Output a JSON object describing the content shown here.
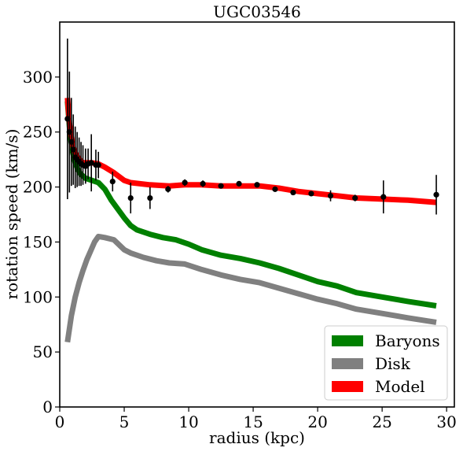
{
  "chart_data": {
    "type": "line",
    "title": "UGC03546",
    "xlabel": "radius (kpc)",
    "ylabel": "rotation speed (km/s)",
    "xlim": [
      0,
      30.6
    ],
    "ylim": [
      0,
      350
    ],
    "x_ticks": [
      0,
      5,
      10,
      15,
      20,
      25,
      30
    ],
    "y_ticks": [
      0,
      50,
      100,
      150,
      200,
      250,
      300
    ],
    "legend": {
      "position": "lower-right",
      "entries": [
        {
          "label": "Baryons",
          "color": "#008000"
        },
        {
          "label": "Disk",
          "color": "#808080"
        },
        {
          "label": "Model",
          "color": "#ff0000"
        }
      ]
    },
    "series": [
      {
        "name": "Baryons",
        "color": "#008000",
        "points": [
          [
            0.6,
            278
          ],
          [
            0.8,
            248
          ],
          [
            1.0,
            232
          ],
          [
            1.2,
            222
          ],
          [
            1.4,
            216
          ],
          [
            1.6,
            212
          ],
          [
            1.8,
            210
          ],
          [
            2.0,
            208
          ],
          [
            2.5,
            206
          ],
          [
            3.0,
            204
          ],
          [
            3.5,
            198
          ],
          [
            4.0,
            188
          ],
          [
            5.0,
            172
          ],
          [
            5.5,
            165
          ],
          [
            6.0,
            161
          ],
          [
            7.0,
            157
          ],
          [
            8.0,
            154
          ],
          [
            9.0,
            152
          ],
          [
            10.0,
            148
          ],
          [
            11.0,
            143
          ],
          [
            12.5,
            138
          ],
          [
            14.0,
            135
          ],
          [
            15.5,
            131
          ],
          [
            17.0,
            126
          ],
          [
            18.5,
            120
          ],
          [
            20.0,
            114
          ],
          [
            21.5,
            110
          ],
          [
            23.0,
            104
          ],
          [
            25.0,
            100
          ],
          [
            27.0,
            96
          ],
          [
            29.2,
            92
          ]
        ]
      },
      {
        "name": "Disk",
        "color": "#808080",
        "points": [
          [
            0.6,
            59
          ],
          [
            0.9,
            83
          ],
          [
            1.2,
            100
          ],
          [
            1.5,
            113
          ],
          [
            1.8,
            124
          ],
          [
            2.1,
            134
          ],
          [
            2.4,
            142
          ],
          [
            2.7,
            150
          ],
          [
            3.0,
            155
          ],
          [
            3.5,
            154
          ],
          [
            4.2,
            152
          ],
          [
            5.0,
            143
          ],
          [
            5.5,
            140
          ],
          [
            6.5,
            136
          ],
          [
            7.5,
            133
          ],
          [
            8.5,
            131
          ],
          [
            9.7,
            130
          ],
          [
            11.0,
            125
          ],
          [
            12.5,
            120
          ],
          [
            14.0,
            116
          ],
          [
            15.5,
            113
          ],
          [
            17.0,
            108
          ],
          [
            18.5,
            103
          ],
          [
            20.0,
            98
          ],
          [
            21.5,
            94
          ],
          [
            23.0,
            89
          ],
          [
            25.0,
            85
          ],
          [
            27.0,
            81
          ],
          [
            29.2,
            77
          ]
        ]
      },
      {
        "name": "Model",
        "color": "#ff0000",
        "points": [
          [
            0.6,
            281
          ],
          [
            0.75,
            258
          ],
          [
            0.9,
            245
          ],
          [
            1.05,
            236
          ],
          [
            1.2,
            231
          ],
          [
            1.4,
            227
          ],
          [
            1.6,
            224
          ],
          [
            1.8,
            222
          ],
          [
            2.0,
            222
          ],
          [
            2.5,
            222
          ],
          [
            3.0,
            221
          ],
          [
            3.5,
            218
          ],
          [
            4.2,
            213
          ],
          [
            5.0,
            206
          ],
          [
            5.5,
            204
          ],
          [
            7.0,
            202
          ],
          [
            8.5,
            201
          ],
          [
            9.7,
            202
          ],
          [
            11.0,
            202
          ],
          [
            12.5,
            201
          ],
          [
            14.0,
            201
          ],
          [
            15.5,
            201
          ],
          [
            17.0,
            199
          ],
          [
            18.5,
            196
          ],
          [
            20.0,
            194
          ],
          [
            21.5,
            192
          ],
          [
            23.0,
            190
          ],
          [
            25.0,
            189
          ],
          [
            27.0,
            188
          ],
          [
            29.2,
            186
          ]
        ]
      }
    ],
    "observed": {
      "color": "#000000",
      "points": [
        {
          "x": 0.6,
          "y": 262,
          "err": 73
        },
        {
          "x": 0.75,
          "y": 250,
          "err": 55
        },
        {
          "x": 0.9,
          "y": 241,
          "err": 40
        },
        {
          "x": 1.05,
          "y": 234,
          "err": 32
        },
        {
          "x": 1.2,
          "y": 227,
          "err": 28
        },
        {
          "x": 1.35,
          "y": 225,
          "err": 25
        },
        {
          "x": 1.5,
          "y": 223,
          "err": 22
        },
        {
          "x": 1.65,
          "y": 221,
          "err": 20
        },
        {
          "x": 1.8,
          "y": 220,
          "err": 18
        },
        {
          "x": 2.0,
          "y": 219,
          "err": 16
        },
        {
          "x": 2.2,
          "y": 221,
          "err": 14
        },
        {
          "x": 2.45,
          "y": 222,
          "err": 26
        },
        {
          "x": 2.8,
          "y": 220,
          "err": 14
        },
        {
          "x": 3.0,
          "y": 220,
          "err": 12
        },
        {
          "x": 4.1,
          "y": 205,
          "err": 9
        },
        {
          "x": 5.5,
          "y": 190,
          "err": 14
        },
        {
          "x": 7.0,
          "y": 190,
          "err": 10
        },
        {
          "x": 8.4,
          "y": 198,
          "err": 3
        },
        {
          "x": 9.7,
          "y": 204,
          "err": 3
        },
        {
          "x": 11.1,
          "y": 203,
          "err": 3
        },
        {
          "x": 12.5,
          "y": 201,
          "err": 2
        },
        {
          "x": 13.9,
          "y": 203,
          "err": 2
        },
        {
          "x": 15.3,
          "y": 202,
          "err": 2
        },
        {
          "x": 16.7,
          "y": 198,
          "err": 2
        },
        {
          "x": 18.1,
          "y": 195,
          "err": 2
        },
        {
          "x": 19.5,
          "y": 194,
          "err": 2
        },
        {
          "x": 21.0,
          "y": 192,
          "err": 5
        },
        {
          "x": 22.9,
          "y": 190,
          "err": 3
        },
        {
          "x": 25.1,
          "y": 191,
          "err": 15
        },
        {
          "x": 29.2,
          "y": 193,
          "err": 18
        }
      ]
    }
  }
}
